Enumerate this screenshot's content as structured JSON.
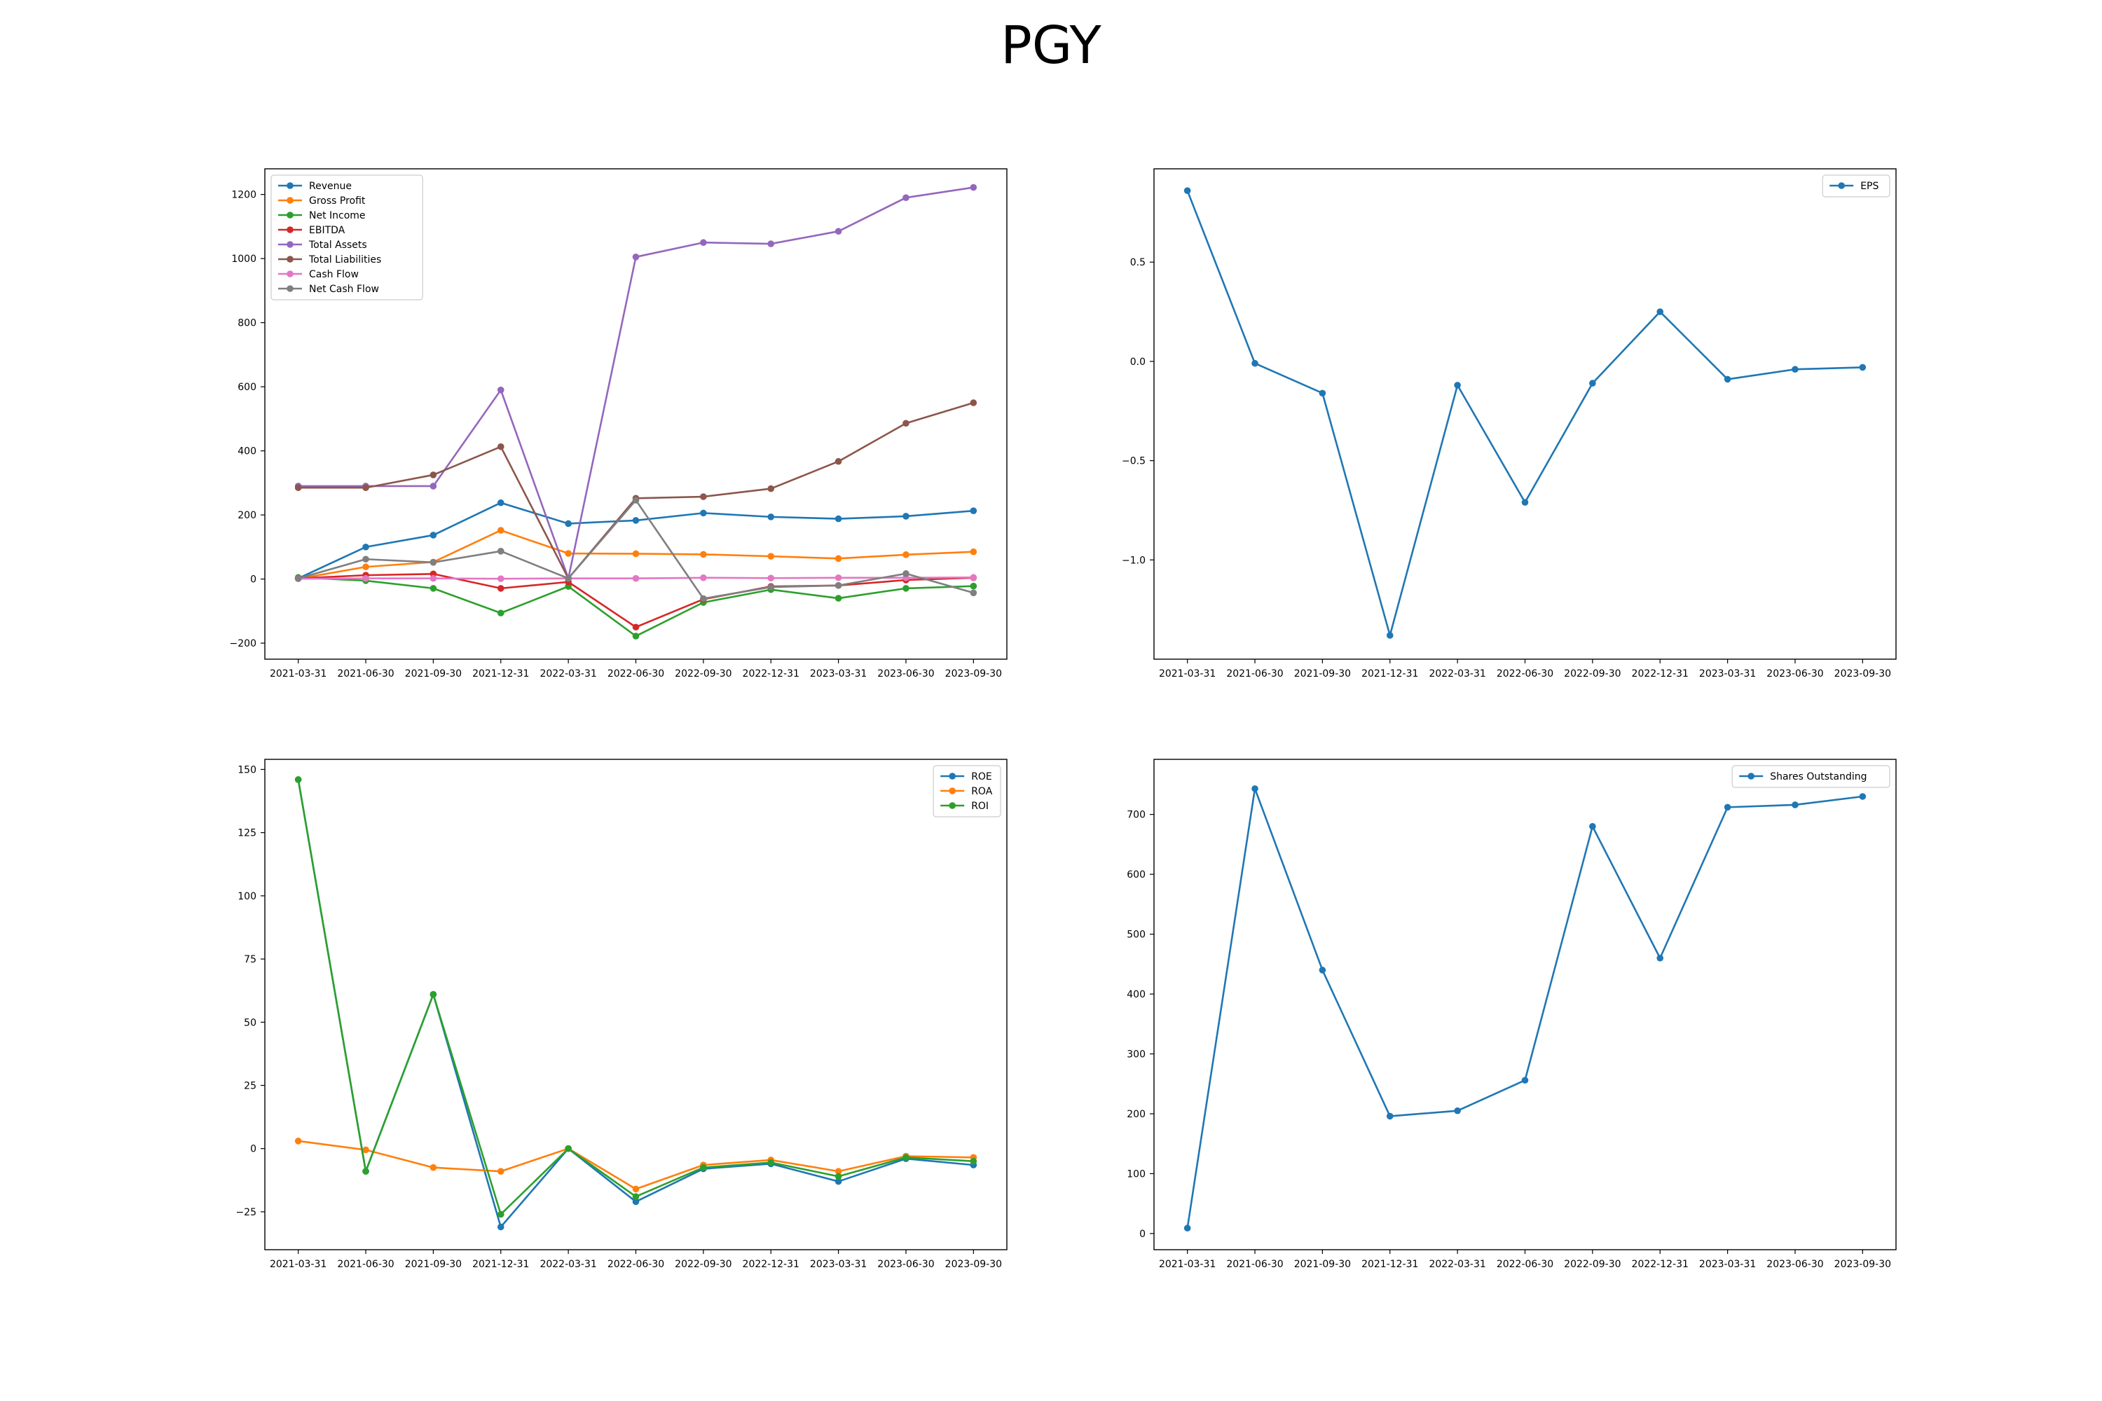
{
  "suptitle": "PGY",
  "chart_data": [
    {
      "type": "line",
      "x": [
        "2021-03-31",
        "2021-06-30",
        "2021-09-30",
        "2021-12-31",
        "2022-03-31",
        "2022-06-30",
        "2022-09-30",
        "2022-12-31",
        "2023-03-31",
        "2023-06-30",
        "2023-09-30"
      ],
      "ylim": [
        -250,
        1280
      ],
      "yticks": [
        -200,
        0,
        200,
        400,
        600,
        800,
        1000,
        1200
      ],
      "legend": "upper left",
      "grid": false,
      "series": [
        {
          "name": "Revenue",
          "color": "#1f77b4",
          "values": [
            2,
            100,
            137,
            238,
            173,
            183,
            206,
            194,
            188,
            196,
            213
          ]
        },
        {
          "name": "Gross Profit",
          "color": "#ff7f0e",
          "values": [
            1,
            38,
            53,
            152,
            80,
            79,
            77,
            71,
            64,
            76,
            85
          ]
        },
        {
          "name": "Net Income",
          "color": "#2ca02c",
          "values": [
            5,
            -5,
            -29,
            -106,
            -23,
            -178,
            -73,
            -33,
            -60,
            -29,
            -22
          ]
        },
        {
          "name": "EBITDA",
          "color": "#d62728",
          "values": [
            2,
            12,
            16,
            -29,
            -9,
            -150,
            -63,
            -23,
            -20,
            -3,
            4
          ]
        },
        {
          "name": "Total Assets",
          "color": "#9467bd",
          "values": [
            290,
            290,
            290,
            590,
            2,
            1005,
            1050,
            1046,
            1085,
            1190,
            1222
          ]
        },
        {
          "name": "Total Liabilities",
          "color": "#8c564b",
          "values": [
            285,
            285,
            325,
            413,
            2,
            252,
            257,
            282,
            367,
            486,
            550
          ]
        },
        {
          "name": "Cash Flow",
          "color": "#e377c2",
          "values": [
            1,
            2,
            2,
            1,
            2,
            2,
            4,
            3,
            4,
            4,
            5
          ]
        },
        {
          "name": "Net Cash Flow",
          "color": "#7f7f7f",
          "values": [
            2,
            62,
            52,
            87,
            2,
            246,
            -61,
            -25,
            -20,
            17,
            -43
          ]
        }
      ]
    },
    {
      "type": "line",
      "x": [
        "2021-03-31",
        "2021-06-30",
        "2021-09-30",
        "2021-12-31",
        "2022-03-31",
        "2022-06-30",
        "2022-09-30",
        "2022-12-31",
        "2023-03-31",
        "2023-06-30",
        "2023-09-30"
      ],
      "ylim": [
        -1.5,
        0.97
      ],
      "yticks": [
        -1.0,
        -0.5,
        0.0,
        0.5
      ],
      "ytick_labels": [
        "−1.0",
        "−0.5",
        "0.0",
        "0.5"
      ],
      "legend": "upper right",
      "grid": false,
      "series": [
        {
          "name": "EPS",
          "color": "#1f77b4",
          "values": [
            0.86,
            -0.01,
            -0.16,
            -1.38,
            -0.12,
            -0.71,
            -0.11,
            0.25,
            -0.09,
            -0.04,
            -0.03
          ]
        }
      ]
    },
    {
      "type": "line",
      "x": [
        "2021-03-31",
        "2021-06-30",
        "2021-09-30",
        "2021-12-31",
        "2022-03-31",
        "2022-06-30",
        "2022-09-30",
        "2022-12-31",
        "2023-03-31",
        "2023-06-30",
        "2023-09-30"
      ],
      "ylim": [
        -40,
        154
      ],
      "yticks": [
        -25,
        0,
        25,
        50,
        75,
        100,
        125,
        150
      ],
      "ytick_labels": [
        "−25",
        "0",
        "25",
        "50",
        "75",
        "100",
        "125",
        "150"
      ],
      "legend": "upper right",
      "grid": false,
      "series": [
        {
          "name": "ROE",
          "color": "#1f77b4",
          "values": [
            146,
            -9,
            61,
            -31,
            0,
            -21,
            -8,
            -6,
            -13,
            -4,
            -6.5
          ]
        },
        {
          "name": "ROA",
          "color": "#ff7f0e",
          "values": [
            3,
            -0.5,
            -7.5,
            -9,
            0,
            -16,
            -6.5,
            -4.5,
            -9,
            -3,
            -3.5
          ]
        },
        {
          "name": "ROI",
          "color": "#2ca02c",
          "values": [
            146,
            -9,
            61,
            -26,
            0,
            -19,
            -7.5,
            -5.5,
            -11,
            -3.5,
            -5
          ]
        }
      ]
    },
    {
      "type": "line",
      "x": [
        "2021-03-31",
        "2021-06-30",
        "2021-09-30",
        "2021-12-31",
        "2022-03-31",
        "2022-06-30",
        "2022-09-30",
        "2022-12-31",
        "2023-03-31",
        "2023-06-30",
        "2023-09-30"
      ],
      "ylim": [
        -27,
        792
      ],
      "yticks": [
        0,
        100,
        200,
        300,
        400,
        500,
        600,
        700
      ],
      "legend": "upper right",
      "grid": false,
      "series": [
        {
          "name": "Shares Outstanding",
          "color": "#1f77b4",
          "values": [
            9,
            743,
            440,
            196,
            205,
            256,
            680,
            460,
            712,
            716,
            730
          ]
        }
      ]
    }
  ]
}
